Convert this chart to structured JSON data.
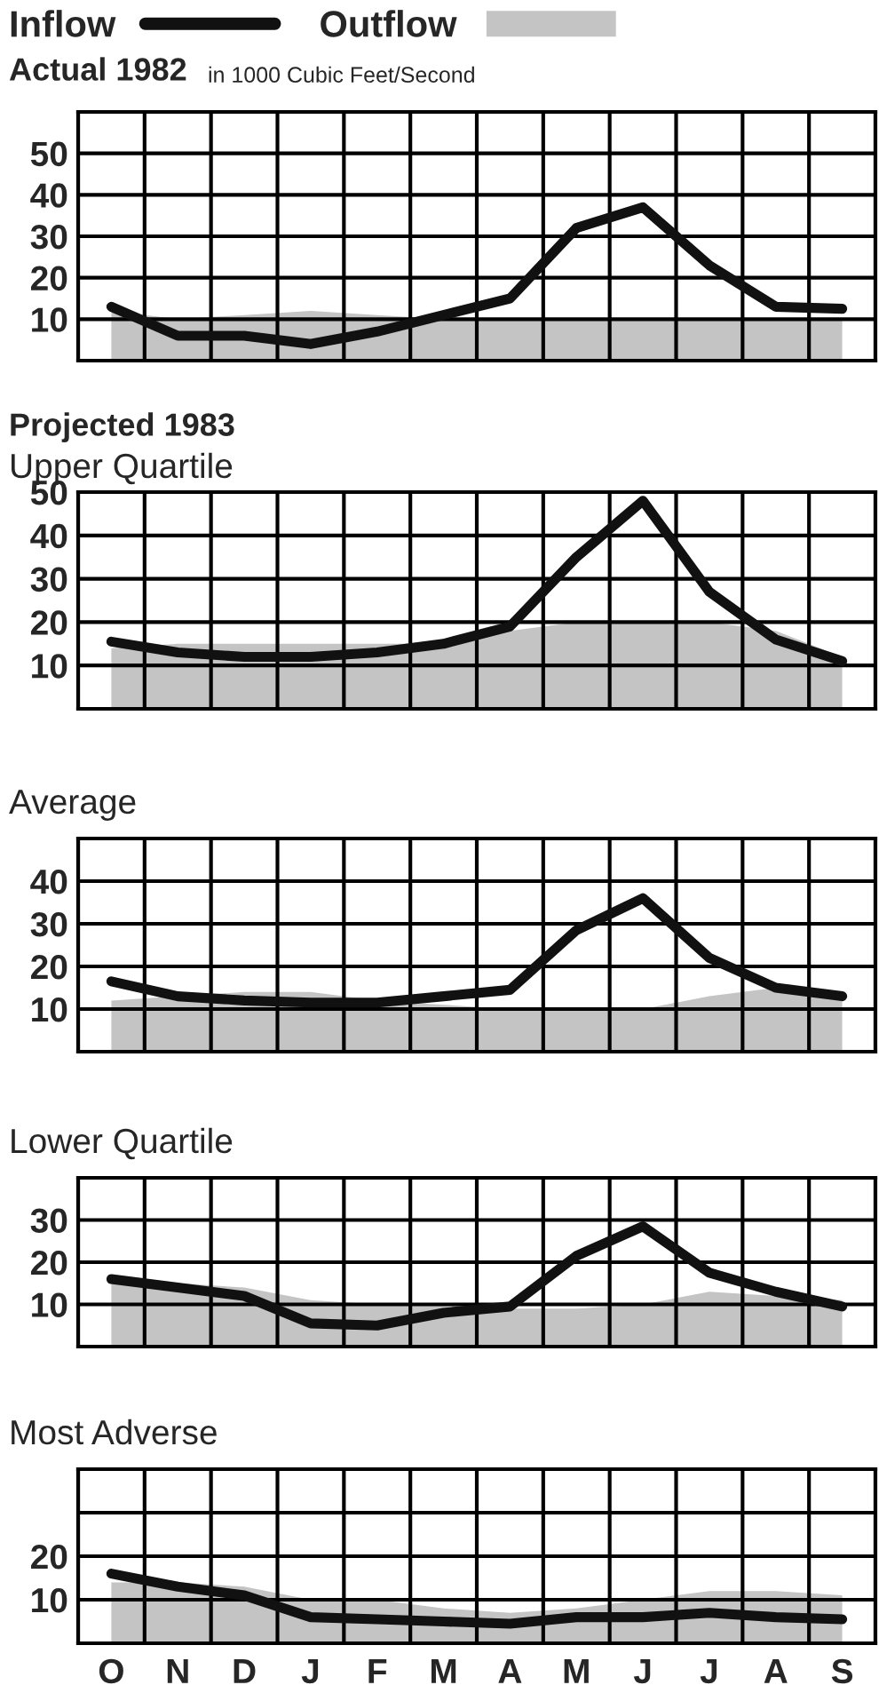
{
  "chart_data": [
    {
      "type": "line",
      "title": "Actual 1982",
      "subtitle": "in 1000 Cubic Feet/Second",
      "categories": [
        null,
        null,
        null,
        null,
        null,
        null,
        null,
        null,
        null,
        null,
        null,
        null
      ],
      "ylim": [
        0,
        60
      ],
      "yticks": [
        10,
        20,
        30,
        40,
        50,
        {
          "value": 60,
          "label": null
        }
      ],
      "grid": true,
      "legend": "top left",
      "tick_labels": "y",
      "line_style": "solid",
      "series": [
        {
          "name": "Inflow",
          "color": "#111111",
          "values": [
            13,
            6,
            6,
            4,
            7,
            11,
            15,
            32,
            37,
            23,
            13,
            12.5
          ]
        },
        {
          "name": "Outflow",
          "type": "area",
          "color": "#c4c4c4",
          "values": [
            12,
            10,
            11,
            12,
            11,
            10,
            10,
            10,
            10,
            10,
            10,
            10
          ]
        }
      ]
    },
    {
      "type": "line",
      "title": "Projected 1983",
      "subtitle": "Upper Quartile",
      "categories": [
        null,
        null,
        null,
        null,
        null,
        null,
        null,
        null,
        null,
        null,
        null,
        null
      ],
      "ylim": [
        0,
        50
      ],
      "yticks": [
        10,
        20,
        30,
        40,
        50
      ],
      "grid": true,
      "tick_labels": "y",
      "line_style": "solid",
      "series": [
        {
          "color": "#111111",
          "values": [
            15.5,
            13,
            12,
            12,
            13,
            15,
            19,
            35,
            48,
            27,
            16,
            11
          ]
        },
        {
          "type": "area",
          "color": "#c4c4c4",
          "values": [
            14,
            15,
            15,
            15,
            15,
            15,
            18,
            20,
            20,
            20,
            18,
            12
          ]
        }
      ]
    },
    {
      "type": "line",
      "title": "Average",
      "categories": [
        null,
        null,
        null,
        null,
        null,
        null,
        null,
        null,
        null,
        null,
        null,
        null
      ],
      "ylim": [
        0,
        50
      ],
      "yticks": [
        10,
        20,
        30,
        40,
        {
          "value": 50,
          "label": null
        }
      ],
      "grid": true,
      "tick_labels": "y",
      "line_style": "solid",
      "series": [
        {
          "color": "#111111",
          "values": [
            16.5,
            13,
            12,
            11.5,
            11.5,
            13,
            14.5,
            28.5,
            36,
            22,
            15,
            13
          ]
        },
        {
          "type": "area",
          "color": "#c4c4c4",
          "values": [
            12,
            13,
            14,
            14,
            12,
            11,
            10,
            10,
            10,
            13,
            15,
            12
          ]
        }
      ]
    },
    {
      "type": "line",
      "title": "Lower Quartile",
      "categories": [
        null,
        null,
        null,
        null,
        null,
        null,
        null,
        null,
        null,
        null,
        null,
        null
      ],
      "ylim": [
        0,
        40
      ],
      "yticks": [
        10,
        20,
        30,
        {
          "value": 40,
          "label": null
        }
      ],
      "grid": true,
      "tick_labels": "y",
      "line_style": "solid",
      "series": [
        {
          "color": "#111111",
          "values": [
            16,
            14,
            12,
            5.5,
            5,
            8,
            9.5,
            21.5,
            28.5,
            17.5,
            13,
            9.5
          ]
        },
        {
          "type": "area",
          "color": "#c4c4c4",
          "values": [
            15,
            15,
            14,
            11,
            10,
            10,
            9,
            9,
            10,
            13,
            12,
            11
          ]
        }
      ]
    },
    {
      "type": "line",
      "title": "Most Adverse",
      "categories": [
        "O",
        "N",
        "D",
        "J",
        "F",
        "M",
        "A",
        "M",
        "J",
        "J",
        "A",
        "S"
      ],
      "ylim": [
        0,
        40
      ],
      "yticks": [
        10,
        20,
        {
          "value": 30,
          "label": null
        },
        {
          "value": 40,
          "label": null
        }
      ],
      "grid": true,
      "line_style": "solid",
      "series": [
        {
          "color": "#111111",
          "values": [
            16,
            13,
            11,
            6,
            5.5,
            5,
            4.5,
            6,
            6,
            7,
            6,
            5.5
          ]
        },
        {
          "type": "area",
          "color": "#c4c4c4",
          "values": [
            14,
            14,
            13,
            10,
            10,
            8,
            7,
            8,
            10,
            12,
            12,
            11
          ]
        }
      ]
    }
  ]
}
